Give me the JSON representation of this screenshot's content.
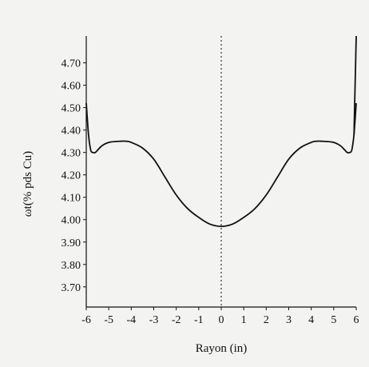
{
  "chart_data": {
    "type": "line",
    "title": "",
    "xlabel": "Rayon (in)",
    "ylabel": "ωt(% pds Cu)",
    "xlim": [
      -6,
      6
    ],
    "ylim": [
      3.61,
      4.82
    ],
    "x_ticks": [
      "-6",
      "-5",
      "-4",
      "-3",
      "-2",
      "-1",
      "0",
      "1",
      "2",
      "3",
      "4",
      "5",
      "6"
    ],
    "y_ticks": [
      "3.70",
      "3.80",
      "3.90",
      "4.00",
      "4.10",
      "4.20",
      "4.30",
      "4.40",
      "4.50",
      "4.60",
      "4.70"
    ],
    "reference_line_x": 0,
    "series": [
      {
        "x": [
          -6,
          -5.9,
          -5.8,
          -5.7,
          -5.6,
          -5.5,
          -5.3,
          -5.0,
          -4.5,
          -4.2,
          -4.0,
          -3.5,
          -3.0,
          -2.5,
          -2.0,
          -1.5,
          -1.0,
          -0.5,
          0,
          0.5,
          1.0,
          1.5,
          2.0,
          2.5,
          3.0,
          3.5,
          4.0,
          4.2,
          4.5,
          5.0,
          5.3,
          5.5,
          5.6,
          5.7,
          5.8,
          5.9,
          6.0
        ],
        "y": [
          4.52,
          4.38,
          4.31,
          4.3,
          4.3,
          4.31,
          4.33,
          4.345,
          4.35,
          4.35,
          4.345,
          4.32,
          4.27,
          4.19,
          4.11,
          4.05,
          4.01,
          3.98,
          3.97,
          3.98,
          4.01,
          4.05,
          4.11,
          4.19,
          4.27,
          4.32,
          4.345,
          4.35,
          4.35,
          4.345,
          4.33,
          4.31,
          4.3,
          4.3,
          4.31,
          4.38,
          4.52
        ]
      },
      {
        "x": [
          5.9,
          5.95,
          6.0
        ],
        "y": [
          4.38,
          4.6,
          4.82
        ]
      }
    ]
  }
}
